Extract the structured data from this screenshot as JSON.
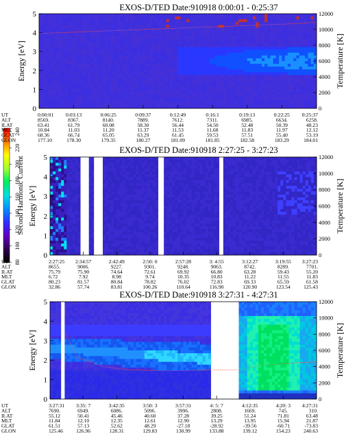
{
  "colorbar": {
    "label": "Second Harmonic Current",
    "ticks": [
      "240",
      "220",
      "200",
      "180",
      "160",
      "140",
      "120",
      "100",
      "80"
    ],
    "stops": [
      "#ff0000",
      "#ff7a00",
      "#ffff00",
      "#a0ff30",
      "#00ee60",
      "#00e0e0",
      "#0090ff",
      "#3030ff",
      "#6000c0",
      "#300050",
      "#000000"
    ]
  },
  "chart_data": [
    {
      "type": "heatmap",
      "title": "EXOS-D/TED   Date:910918  0:00:01 - 0:25:37",
      "ylabel": "Energy [eV]",
      "y2label": "Temperature [K]",
      "ylim": [
        0,
        5
      ],
      "y2lim": [
        0,
        12000
      ],
      "yticks": [
        "0",
        "1",
        "2",
        "3",
        "4",
        "5"
      ],
      "y2ticks": [
        "0",
        "2000",
        "4000",
        "6000",
        "8000",
        "10000",
        "12000"
      ],
      "row_labels": [
        "UT",
        "ALT",
        "ILAT",
        "MLT",
        "GLAT",
        "GLON"
      ],
      "columns": [
        [
          "0:00:01",
          "8569.",
          "63.41",
          "10.84",
          "68.36",
          "177.10"
        ],
        [
          "0:03:13",
          "8367.",
          "61.79",
          "11.03",
          "66.74",
          "178.30"
        ],
        [
          "0:06:25",
          "8140.",
          "60.08",
          "11.20",
          "65.05",
          "179.35"
        ],
        [
          "0:09:37",
          "7889.",
          "58.30",
          "11.37",
          "63.29",
          "180.27"
        ],
        [
          "0:12:49",
          "7612.",
          "56.44",
          "11.53",
          "61.45",
          "181.09"
        ],
        [
          "0:16:1",
          "7311.",
          "54.50",
          "11.68",
          "59.53",
          "181.85"
        ],
        [
          "0:19:13",
          "6985.",
          "52.48",
          "11.83",
          "57.51",
          "182.58"
        ],
        [
          "0:22:25",
          "6634.",
          "50.39",
          "11.97",
          "55.40",
          "183.29"
        ],
        [
          "0:25:37",
          "6258.",
          "48.23",
          "12.12",
          "53.19",
          "184.01"
        ]
      ],
      "gaps": [],
      "temperature_trace": [
        [
          0.0,
          9500
        ],
        [
          0.15,
          9700
        ],
        [
          0.3,
          9900
        ],
        [
          0.45,
          10100
        ],
        [
          0.6,
          10300
        ],
        [
          0.75,
          10500
        ],
        [
          0.9,
          10700
        ],
        [
          1.0,
          10900
        ]
      ]
    },
    {
      "type": "heatmap",
      "title": "EXOS-D/TED   Date:910918  2:27:25 - 3:27:23",
      "ylabel": "Energy [eV]",
      "y2label": "Temperature [K]",
      "ylim": [
        0,
        5
      ],
      "y2lim": [
        0,
        12000
      ],
      "yticks": [
        "0",
        "1",
        "2",
        "3",
        "4",
        "5"
      ],
      "y2ticks": [
        "0",
        "2000",
        "4000",
        "6000",
        "8000",
        "10000",
        "12000"
      ],
      "row_labels": [
        "UT",
        "ALT",
        "ILAT",
        "MLT",
        "GLAT",
        "GLON"
      ],
      "columns": [
        [
          "2:27:25",
          "8655.",
          "75.79",
          "6.72",
          "80.23",
          "32.86"
        ],
        [
          "2:34:57",
          "9006.",
          "75.90",
          "7.92",
          "81.57",
          "57.74"
        ],
        [
          "2:42:49",
          "9227.",
          "74.64",
          "8.98",
          "80.84",
          "83.81"
        ],
        [
          "2:50: 0",
          "9301.",
          "72.61",
          "9.74",
          "78.82",
          "100.26"
        ],
        [
          "2:57:28",
          "9248.",
          "69.92",
          "10.35",
          "76.02",
          "110.64"
        ],
        [
          "3: 4:55",
          "9063.",
          "66.80",
          "10.83",
          "72.83",
          "116.90"
        ],
        [
          "3:12:27",
          "8742.",
          "63.28",
          "11.22",
          "69.33",
          "120.90"
        ],
        [
          "3:19:55",
          "8289.",
          "59.43",
          "11.55",
          "65.59",
          "123.54"
        ],
        [
          "3:27:23",
          "7701.",
          "55.20",
          "11.83",
          "61.58",
          "125.43"
        ]
      ],
      "gaps": [
        [
          0.115,
          0.145
        ],
        [
          0.165,
          0.195
        ],
        [
          0.41,
          0.425
        ],
        [
          0.635,
          0.65
        ]
      ],
      "temperature_trace": []
    },
    {
      "type": "heatmap",
      "title": "EXOS-D/TED   Date:910918  3:27:31 - 4:27:31",
      "ylabel": "Energy [eV]",
      "y2label": "Temperature [K]",
      "ylim": [
        0,
        5
      ],
      "y2lim": [
        0,
        12000
      ],
      "yticks": [
        "0",
        "1",
        "2",
        "3",
        "4",
        "5"
      ],
      "y2ticks": [
        "0",
        "2000",
        "4000",
        "6000",
        "8000",
        "10000",
        "12000"
      ],
      "row_labels": [
        "UT",
        "ALT",
        "ILAT",
        "MLT",
        "GLAT",
        "GLON"
      ],
      "columns": [
        [
          "3:27:31",
          "7690.",
          "55.12",
          "11.84",
          "61.51",
          "125.46"
        ],
        [
          "3:35: 7",
          "6949.",
          "50.41",
          "12.10",
          "57.13",
          "126.96"
        ],
        [
          "3:42:35",
          "6086.",
          "45.46",
          "12.35",
          "52.62",
          "128.31"
        ],
        [
          "3:50: 3",
          "5096.",
          "40.60",
          "12.61",
          "48.29",
          "129.83"
        ],
        [
          "3:57:31",
          "3996.",
          "37.28",
          "12.90",
          "-27.18",
          "130.99"
        ],
        [
          "4: 5: 7",
          "2808.",
          "39.25",
          "13.29",
          "-28.92",
          "133.88"
        ],
        [
          "4:12:35",
          "1669.",
          "51.24",
          "13.95",
          "-39.56",
          "139.12"
        ],
        [
          "4:20: 3",
          "745.",
          "71.81",
          "15.94",
          "-60.71",
          "154.23"
        ],
        [
          "4:27:31",
          "310.",
          "63.48",
          "21.87",
          "-73.83",
          "240.63"
        ]
      ],
      "gaps": [
        [
          0.045,
          0.055
        ],
        [
          0.605,
          0.705
        ]
      ],
      "temperature_trace": [
        [
          0.06,
          8000
        ],
        [
          0.1,
          5200
        ],
        [
          0.2,
          4000
        ],
        [
          0.3,
          3600
        ],
        [
          0.4,
          3500
        ],
        [
          0.5,
          3500
        ],
        [
          0.6,
          3600
        ],
        [
          0.71,
          3600
        ],
        [
          0.8,
          4200
        ],
        [
          0.9,
          4400
        ],
        [
          1.0,
          4600
        ]
      ]
    }
  ]
}
